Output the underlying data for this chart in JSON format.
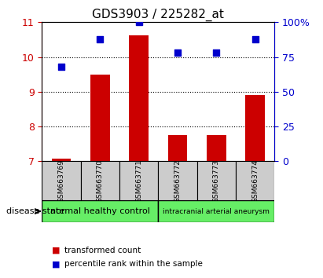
{
  "title": "GDS3903 / 225282_at",
  "samples": [
    "GSM663769",
    "GSM663770",
    "GSM663771",
    "GSM663772",
    "GSM663773",
    "GSM663774"
  ],
  "transformed_count": [
    7.08,
    9.5,
    10.62,
    7.75,
    7.75,
    8.9
  ],
  "percentile_rank": [
    68,
    88,
    100,
    78,
    78,
    88
  ],
  "ylim_left": [
    7,
    11
  ],
  "ylim_right": [
    0,
    100
  ],
  "yticks_left": [
    7,
    8,
    9,
    10,
    11
  ],
  "yticks_right": [
    0,
    25,
    50,
    75,
    100
  ],
  "ytick_labels_right": [
    "0",
    "25",
    "50",
    "75",
    "100%"
  ],
  "bar_color": "#cc0000",
  "scatter_color": "#0000cc",
  "group1_label": "normal healthy control",
  "group2_label": "intracranial arterial aneurysm",
  "group1_indices": [
    0,
    1,
    2
  ],
  "group2_indices": [
    3,
    4,
    5
  ],
  "group_color": "#66ee66",
  "xlabel_label": "disease state",
  "legend_bar_label": "transformed count",
  "legend_scatter_label": "percentile rank within the sample",
  "tick_label_color_left": "#cc0000",
  "tick_label_color_right": "#0000cc",
  "sample_box_color": "#cccccc",
  "gridlines": [
    8,
    9,
    10
  ]
}
